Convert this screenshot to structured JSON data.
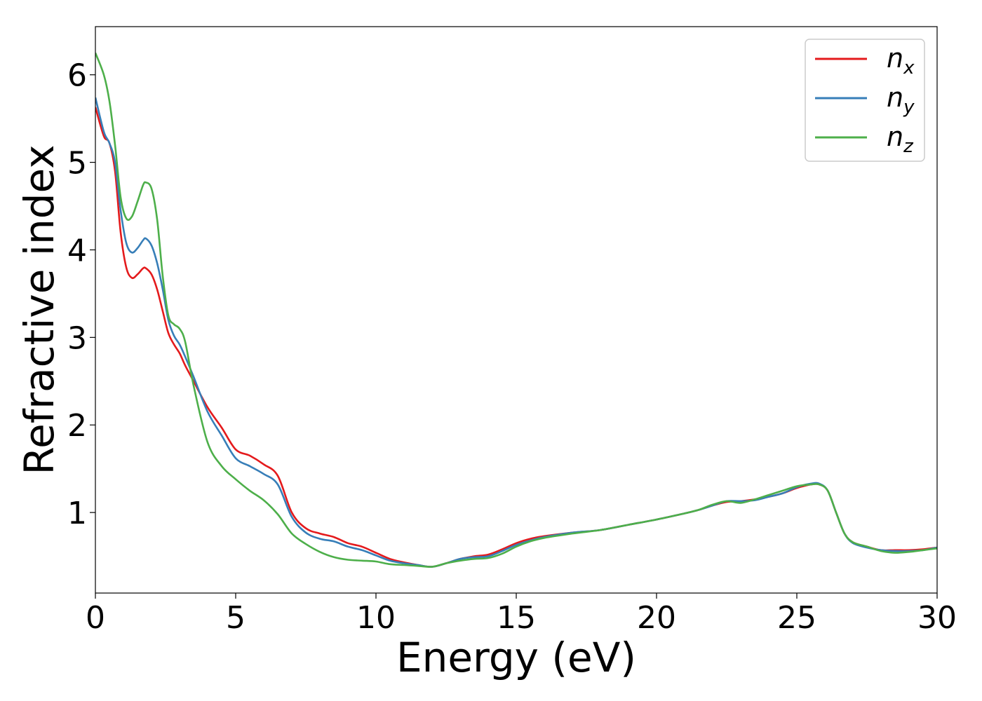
{
  "chart_data": {
    "type": "line",
    "xlabel": "Energy (eV)",
    "ylabel": "Refractive index",
    "xlim": [
      0,
      30
    ],
    "ylim": [
      0.08,
      6.55
    ],
    "xticks": [
      0,
      5,
      10,
      15,
      20,
      25,
      30
    ],
    "yticks": [
      1,
      2,
      3,
      4,
      5,
      6
    ],
    "grid": false,
    "legend_position": "top-right",
    "series": [
      {
        "name": "n",
        "subscript": "x",
        "color": "#e41a1c",
        "x": [
          0,
          0.3,
          0.5,
          0.7,
          0.9,
          1.1,
          1.3,
          1.5,
          1.7,
          1.8,
          2.0,
          2.2,
          2.4,
          2.6,
          2.8,
          3.0,
          3.2,
          3.5,
          4.0,
          4.5,
          5.0,
          5.5,
          6.0,
          6.5,
          7.0,
          7.5,
          8.0,
          8.5,
          9.0,
          9.5,
          10.0,
          10.5,
          11.0,
          11.5,
          12.0,
          12.5,
          13.0,
          13.5,
          14.0,
          14.5,
          15.0,
          15.5,
          16.0,
          17.0,
          18.0,
          19.0,
          20.0,
          21.0,
          21.5,
          22.0,
          22.5,
          23.0,
          23.5,
          24.0,
          24.5,
          25.0,
          25.5,
          25.8,
          26.1,
          26.4,
          26.7,
          27.0,
          27.5,
          28.0,
          28.5,
          29.0,
          29.5,
          30.0
        ],
        "y": [
          5.63,
          5.3,
          5.22,
          4.9,
          4.2,
          3.8,
          3.68,
          3.72,
          3.79,
          3.79,
          3.72,
          3.55,
          3.3,
          3.05,
          2.92,
          2.82,
          2.68,
          2.5,
          2.2,
          1.97,
          1.72,
          1.65,
          1.55,
          1.42,
          1.0,
          0.82,
          0.76,
          0.72,
          0.65,
          0.61,
          0.54,
          0.47,
          0.43,
          0.4,
          0.38,
          0.42,
          0.47,
          0.5,
          0.52,
          0.58,
          0.65,
          0.7,
          0.73,
          0.77,
          0.8,
          0.86,
          0.92,
          0.99,
          1.03,
          1.08,
          1.12,
          1.13,
          1.15,
          1.18,
          1.22,
          1.28,
          1.32,
          1.32,
          1.25,
          1.0,
          0.76,
          0.66,
          0.61,
          0.57,
          0.57,
          0.57,
          0.58,
          0.6
        ]
      },
      {
        "name": "n",
        "subscript": "y",
        "color": "#377eb8",
        "x": [
          0,
          0.3,
          0.5,
          0.7,
          0.9,
          1.1,
          1.3,
          1.5,
          1.7,
          1.8,
          2.0,
          2.2,
          2.4,
          2.6,
          2.8,
          3.0,
          3.2,
          3.5,
          4.0,
          4.5,
          5.0,
          5.5,
          6.0,
          6.5,
          7.0,
          7.5,
          8.0,
          8.5,
          9.0,
          9.5,
          10.0,
          10.5,
          11.0,
          11.5,
          12.0,
          12.5,
          13.0,
          13.5,
          14.0,
          14.5,
          15.0,
          15.5,
          16.0,
          17.0,
          18.0,
          19.0,
          20.0,
          21.0,
          21.5,
          22.0,
          22.5,
          23.0,
          23.5,
          24.0,
          24.5,
          25.0,
          25.5,
          25.8,
          26.1,
          26.4,
          26.7,
          27.0,
          27.5,
          28.0,
          28.5,
          29.0,
          29.5,
          30.0
        ],
        "y": [
          5.74,
          5.35,
          5.22,
          5.0,
          4.45,
          4.08,
          3.97,
          4.02,
          4.11,
          4.13,
          4.05,
          3.85,
          3.55,
          3.2,
          3.02,
          2.92,
          2.78,
          2.55,
          2.15,
          1.88,
          1.62,
          1.53,
          1.44,
          1.32,
          0.95,
          0.77,
          0.7,
          0.67,
          0.61,
          0.57,
          0.51,
          0.45,
          0.42,
          0.4,
          0.38,
          0.42,
          0.47,
          0.49,
          0.5,
          0.56,
          0.63,
          0.68,
          0.72,
          0.77,
          0.8,
          0.86,
          0.92,
          0.99,
          1.03,
          1.08,
          1.13,
          1.13,
          1.14,
          1.18,
          1.22,
          1.29,
          1.33,
          1.33,
          1.25,
          1.0,
          0.76,
          0.65,
          0.6,
          0.57,
          0.56,
          0.56,
          0.57,
          0.6
        ]
      },
      {
        "name": "n",
        "subscript": "z",
        "color": "#4daf4a",
        "x": [
          0,
          0.3,
          0.5,
          0.7,
          0.9,
          1.1,
          1.3,
          1.5,
          1.7,
          1.8,
          2.0,
          2.2,
          2.4,
          2.6,
          2.8,
          3.0,
          3.2,
          3.5,
          4.0,
          4.5,
          5.0,
          5.5,
          6.0,
          6.5,
          7.0,
          7.5,
          8.0,
          8.5,
          9.0,
          9.5,
          10.0,
          10.5,
          11.0,
          11.5,
          12.0,
          12.5,
          13.0,
          13.5,
          14.0,
          14.5,
          15.0,
          15.5,
          16.0,
          17.0,
          18.0,
          19.0,
          20.0,
          21.0,
          21.5,
          22.0,
          22.5,
          23.0,
          23.5,
          24.0,
          24.5,
          25.0,
          25.5,
          25.8,
          26.1,
          26.4,
          26.7,
          27.0,
          27.5,
          28.0,
          28.5,
          29.0,
          29.5,
          30.0
        ],
        "y": [
          6.25,
          6.0,
          5.7,
          5.2,
          4.6,
          4.36,
          4.38,
          4.55,
          4.74,
          4.77,
          4.7,
          4.35,
          3.7,
          3.25,
          3.15,
          3.1,
          2.95,
          2.45,
          1.8,
          1.53,
          1.38,
          1.25,
          1.14,
          0.98,
          0.76,
          0.64,
          0.55,
          0.49,
          0.46,
          0.45,
          0.44,
          0.41,
          0.4,
          0.39,
          0.38,
          0.42,
          0.45,
          0.47,
          0.48,
          0.53,
          0.61,
          0.67,
          0.71,
          0.76,
          0.8,
          0.86,
          0.92,
          0.99,
          1.03,
          1.09,
          1.13,
          1.11,
          1.15,
          1.2,
          1.25,
          1.3,
          1.32,
          1.32,
          1.25,
          1.0,
          0.76,
          0.66,
          0.61,
          0.56,
          0.54,
          0.55,
          0.57,
          0.59
        ]
      }
    ]
  }
}
